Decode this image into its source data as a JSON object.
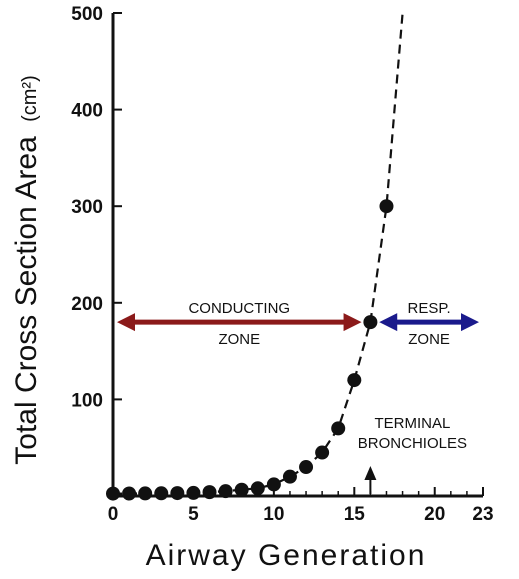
{
  "chart_data": {
    "type": "scatter",
    "title": "",
    "xlabel": "Airway Generation",
    "ylabel": "Total Cross Section Area",
    "ylabel_unit": "(cm²)",
    "xlim": [
      0,
      23
    ],
    "ylim": [
      0,
      500
    ],
    "x_ticks": [
      "0",
      "5",
      "10",
      "15",
      "20",
      "23"
    ],
    "x_tick_values": [
      0,
      5,
      10,
      15,
      20,
      23
    ],
    "y_ticks": [
      "100",
      "200",
      "300",
      "400",
      "500"
    ],
    "y_tick_values": [
      100,
      200,
      300,
      400,
      500
    ],
    "grid": false,
    "series": [
      {
        "x": [
          0,
          1,
          2,
          3,
          4,
          5,
          6,
          7,
          8,
          9,
          10,
          11,
          12,
          13,
          14,
          15,
          16,
          17
        ],
        "y": [
          2.5,
          2.6,
          2.7,
          2.8,
          3,
          3.2,
          4,
          5,
          6.5,
          8,
          12,
          20,
          30,
          45,
          70,
          120,
          180,
          300
        ]
      }
    ],
    "curve": {
      "style": "dashed",
      "x": [
        0,
        1,
        2,
        3,
        4,
        5,
        6,
        7,
        8,
        9,
        10,
        11,
        12,
        13,
        14,
        15,
        16,
        17,
        17.5,
        18
      ],
      "y": [
        2.5,
        2.6,
        2.7,
        2.8,
        3,
        3.2,
        4,
        5,
        6.5,
        8,
        12,
        20,
        30,
        45,
        70,
        120,
        180,
        300,
        400,
        500
      ]
    },
    "annotations": [
      {
        "type": "double-arrow",
        "color": "#8b1a1a",
        "x_from": 0,
        "x_to": 15.7,
        "y": 180,
        "label_lines": [
          "CONDUCTING",
          "ZONE"
        ]
      },
      {
        "type": "double-arrow",
        "color": "#1a1a8c",
        "x_from": 16.3,
        "x_to": 23,
        "y": 180,
        "label_lines": [
          "RESP.",
          "ZONE"
        ]
      },
      {
        "type": "up-arrow",
        "x": 16,
        "label_lines": [
          "TERMINAL",
          "BRONCHIOLES"
        ]
      }
    ]
  }
}
